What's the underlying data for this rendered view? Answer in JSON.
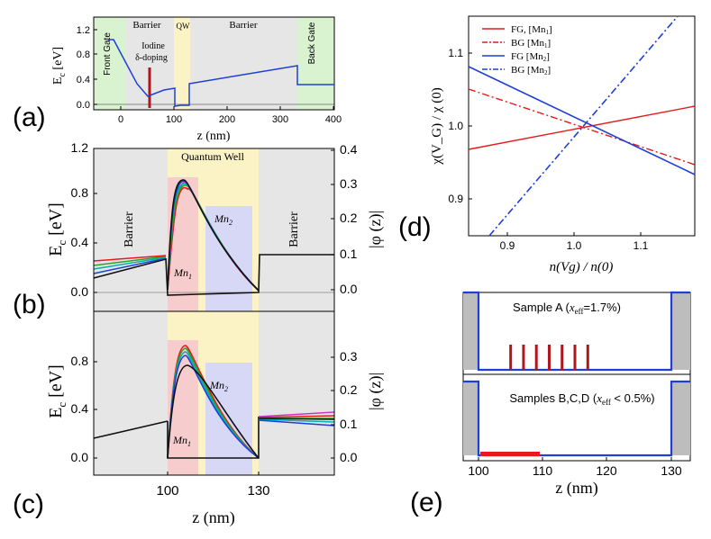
{
  "panel_labels": {
    "a": "(a)",
    "b": "(b)",
    "c": "(c)",
    "d": "(d)",
    "e": "(e)"
  },
  "panel_a": {
    "region_labels": {
      "front_gate": "Front Gate",
      "barrier_left": "Barrier",
      "qw": "QW",
      "barrier_right": "Barrier",
      "back_gate": "Back Gate"
    },
    "doping_label_line1": "Iodine",
    "doping_label_line2": "δ-doping",
    "ylabel_main": "E",
    "ylabel_sub": "c",
    "ylabel_unit": " [eV]",
    "xlabel": "z (nm)",
    "xticks": [
      "0",
      "100",
      "200",
      "300",
      "400"
    ],
    "yticks": [
      "0.0",
      "0.4",
      "0.8",
      "1.2"
    ]
  },
  "panel_b": {
    "title": "Quantum Well",
    "barrier_left": "Barrier",
    "barrier_right": "Barrier",
    "mn1_main": "Mn",
    "mn1_sub": "1",
    "mn2_main": "Mn",
    "mn2_sub": "2",
    "ylabel_left_main": "E",
    "ylabel_left_sub": "c",
    "ylabel_left_unit": " [eV]",
    "ylabel_right": "|φ (z)|",
    "yticks_left": [
      "0.0",
      "0.4",
      "0.8",
      "1.2"
    ],
    "yticks_right": [
      "0.0",
      "0.1",
      "0.2",
      "0.3",
      "0.4"
    ]
  },
  "panel_c": {
    "mn1_main": "Mn",
    "mn1_sub": "1",
    "mn2_main": "Mn",
    "mn2_sub": "2",
    "ylabel_left_main": "E",
    "ylabel_left_sub": "c",
    "ylabel_left_unit": " [eV]",
    "ylabel_right": "|φ (z)|",
    "yticks_left": [
      "0.0",
      "0.4",
      "0.8"
    ],
    "yticks_right": [
      "0.0",
      "0.1",
      "0.2",
      "0.3"
    ],
    "xticks": [
      "100",
      "130"
    ],
    "xlabel": "z (nm)"
  },
  "panel_d": {
    "ylabel": "χ(V_G) / χ (0)",
    "xlabel": "n(Vg) / n(0)",
    "xticks": [
      "0.9",
      "1.0",
      "1.1"
    ],
    "yticks": [
      "0.9",
      "1.0",
      "1.1"
    ],
    "legend": [
      {
        "label": "FG, [Mn",
        "sub": "1",
        "end": "]",
        "color": "#e41a1c",
        "dash": "solid"
      },
      {
        "label": "BG [Mn",
        "sub": "1",
        "end": "]",
        "color": "#e41a1c",
        "dash": "dashdot"
      },
      {
        "label": "FG  [Mn",
        "sub": "2",
        "end": "]",
        "color": "#1f3fd6",
        "dash": "solid"
      },
      {
        "label": "BG [Mn",
        "sub": "2",
        "end": "]",
        "color": "#1f3fd6",
        "dash": "dashdot"
      }
    ]
  },
  "panel_e": {
    "sample_a_prefix": "Sample A (",
    "sample_a_var": "x",
    "sample_a_sub": "eff",
    "sample_a_value": "=1.7%)",
    "sample_bcd_prefix": "Samples B,C,D (",
    "sample_bcd_var": "x",
    "sample_bcd_sub": "eff",
    "sample_bcd_value": " < 0.5%)",
    "xticks": [
      "100",
      "110",
      "120",
      "130"
    ],
    "xlabel": "z (nm)"
  },
  "chart_data": [
    {
      "id": "a",
      "type": "line",
      "title": "",
      "xlabel": "z (nm)",
      "ylabel": "Ec [eV]",
      "xlim": [
        -25,
        400
      ],
      "ylim": [
        -0.07,
        1.3
      ],
      "regions": [
        {
          "name": "Front Gate",
          "x": [
            -25,
            10
          ],
          "color": "#d9f2d0"
        },
        {
          "name": "Barrier",
          "x": [
            10,
            100
          ],
          "color": "#e6e6e6"
        },
        {
          "name": "QW",
          "x": [
            100,
            130
          ],
          "color": "#fbf3c5"
        },
        {
          "name": "Barrier",
          "x": [
            130,
            330
          ],
          "color": "#e6e6e6"
        },
        {
          "name": "Back Gate",
          "x": [
            330,
            400
          ],
          "color": "#d9f2d0"
        }
      ],
      "series": [
        {
          "name": "Ec",
          "color": "#1f3fd6",
          "x": [
            -12,
            2,
            55,
            88,
            100,
            100,
            113,
            130,
            130,
            330,
            330,
            400
          ],
          "y": [
            1.05,
            1.05,
            0.1,
            0.25,
            0.27,
            -0.05,
            -0.04,
            -0.02,
            0.3,
            0.6,
            0.3,
            0.3
          ]
        }
      ],
      "markers": [
        {
          "name": "Iodine δ-doping",
          "x": 55,
          "y": [
            0,
            0.4
          ],
          "color": "#b0161e"
        }
      ]
    },
    {
      "id": "b",
      "type": "line",
      "xlabel": "",
      "ylabel": "Ec [eV]",
      "ylabel_right": "|φ (z)|",
      "xlim": [
        75,
        155
      ],
      "ylim": [
        -0.1,
        1.2
      ],
      "ylim_right": [
        -0.033,
        0.4
      ],
      "regions": [
        {
          "name": "Quantum Well",
          "x": [
            100,
            130
          ],
          "color": "#fbf3c5"
        },
        {
          "name": "Mn1",
          "x": [
            100,
            110
          ],
          "color": "#f6cccc"
        },
        {
          "name": "Mn2",
          "x": [
            112,
            128
          ],
          "color": "#d7d7f6"
        }
      ],
      "series": [
        {
          "name": "Ec curve 1",
          "color": "#111111",
          "x": [
            75,
            100,
            100,
            130,
            130,
            155
          ],
          "y": [
            0.11,
            0.26,
            -0.04,
            -0.01,
            0.3,
            0.3
          ]
        },
        {
          "name": "Ec curve 2",
          "color": "#1f3fd6",
          "x": [
            75,
            100
          ],
          "y": [
            0.14,
            0.27
          ]
        },
        {
          "name": "Ec curve 3",
          "color": "#00b0b0",
          "x": [
            75,
            100
          ],
          "y": [
            0.17,
            0.27
          ]
        },
        {
          "name": "Ec curve 4",
          "color": "#29a329",
          "x": [
            75,
            100
          ],
          "y": [
            0.19,
            0.28
          ]
        },
        {
          "name": "Ec curve 5",
          "color": "#e41a1c",
          "x": [
            75,
            100
          ],
          "y": [
            0.22,
            0.28
          ]
        },
        {
          "name": "|φ| curve 1",
          "color": "#111111",
          "x": [
            100,
            105,
            130
          ],
          "y": [
            0,
            0.31,
            0
          ]
        },
        {
          "name": "|φ| curve 2",
          "color": "#1f3fd6",
          "x": [
            100,
            105.5,
            130
          ],
          "y": [
            0,
            0.3,
            0
          ]
        },
        {
          "name": "|φ| curve 3",
          "color": "#00b0b0",
          "x": [
            100,
            106,
            130
          ],
          "y": [
            0,
            0.29,
            0
          ]
        },
        {
          "name": "|φ| curve 4",
          "color": "#29a329",
          "x": [
            100,
            107,
            130
          ],
          "y": [
            0,
            0.28,
            0
          ]
        },
        {
          "name": "|φ| curve 5",
          "color": "#e41a1c",
          "x": [
            100,
            107.5,
            130
          ],
          "y": [
            0,
            0.27,
            0
          ]
        },
        {
          "name": "|φ| curve 6",
          "color": "#cc33cc",
          "x": [
            100,
            108,
            130
          ],
          "y": [
            0,
            0.26,
            0
          ]
        }
      ]
    },
    {
      "id": "c",
      "type": "line",
      "xlabel": "z (nm)",
      "ylabel": "Ec [eV]",
      "ylabel_right": "|φ (z)|",
      "xlim": [
        75,
        155
      ],
      "ylim": [
        -0.06,
        1.1
      ],
      "ylim_right": [
        -0.02,
        0.367
      ],
      "regions": [
        {
          "name": "Quantum Well",
          "x": [
            100,
            130
          ],
          "color": "#fbf3c5"
        },
        {
          "name": "Mn1",
          "x": [
            100,
            110
          ],
          "color": "#f6cccc"
        },
        {
          "name": "Mn2",
          "x": [
            112,
            128
          ],
          "color": "#d7d7f6"
        }
      ],
      "series": [
        {
          "name": "Ec black",
          "color": "#111111",
          "x": [
            75,
            100,
            100,
            130,
            130,
            155
          ],
          "y": [
            0.17,
            0.29,
            0,
            0,
            0.3,
            0.29
          ]
        },
        {
          "name": "Ec right a",
          "color": "#cc33cc",
          "x": [
            131,
            155
          ],
          "y": [
            0.31,
            0.36
          ]
        },
        {
          "name": "Ec right b",
          "color": "#e41a1c",
          "x": [
            131,
            155
          ],
          "y": [
            0.3,
            0.34
          ]
        },
        {
          "name": "Ec right c",
          "color": "#29a329",
          "x": [
            131,
            155
          ],
          "y": [
            0.3,
            0.32
          ]
        },
        {
          "name": "Ec right d",
          "color": "#00b0b0",
          "x": [
            131,
            155
          ],
          "y": [
            0.29,
            0.3
          ]
        },
        {
          "name": "Ec right e",
          "color": "#1f3fd6",
          "x": [
            131,
            155
          ],
          "y": [
            0.28,
            0.27
          ]
        },
        {
          "name": "|φ| curve 1",
          "color": "#e41a1c",
          "x": [
            100,
            106,
            130
          ],
          "y": [
            0,
            0.32,
            0
          ]
        },
        {
          "name": "|φ| curve 2",
          "color": "#29a329",
          "x": [
            100,
            106,
            130
          ],
          "y": [
            0,
            0.31,
            0
          ]
        },
        {
          "name": "|φ| curve 3",
          "color": "#00b0b0",
          "x": [
            100,
            106,
            130
          ],
          "y": [
            0,
            0.3,
            0
          ]
        },
        {
          "name": "|φ| curve 4",
          "color": "#1f3fd6",
          "x": [
            100,
            106,
            130
          ],
          "y": [
            0,
            0.29,
            0
          ]
        },
        {
          "name": "|φ| black",
          "color": "#111111",
          "x": [
            100,
            106.5,
            130
          ],
          "y": [
            0,
            0.26,
            0
          ]
        }
      ]
    },
    {
      "id": "d",
      "type": "line",
      "xlabel": "n(Vg) / n(0)",
      "ylabel": "χ(VG) / χ (0)",
      "xlim": [
        0.85,
        1.15
      ],
      "ylim": [
        0.85,
        1.15
      ],
      "series": [
        {
          "name": "FG, [Mn1]",
          "color": "#e41a1c",
          "dash": "solid",
          "x": [
            0.85,
            1.0,
            1.15
          ],
          "y": [
            0.967,
            1.0,
            1.026
          ]
        },
        {
          "name": "BG [Mn1]",
          "color": "#e41a1c",
          "dash": "dashdot",
          "x": [
            0.85,
            1.0,
            1.15
          ],
          "y": [
            1.048,
            1.0,
            0.946
          ]
        },
        {
          "name": "FG  [Mn2]",
          "color": "#1f3fd6",
          "dash": "solid",
          "x": [
            0.85,
            1.0,
            1.15
          ],
          "y": [
            1.08,
            1.0,
            0.933
          ]
        },
        {
          "name": "BG [Mn2]",
          "color": "#1f3fd6",
          "dash": "dashdot",
          "x": [
            0.88,
            1.0,
            1.13
          ],
          "y": [
            0.85,
            1.0,
            1.15
          ]
        }
      ]
    },
    {
      "id": "e",
      "type": "line",
      "xlabel": "z (nm)",
      "xlim": [
        97,
        133
      ],
      "series": [
        {
          "name": "Sample A profile",
          "color": "#1f3fd6",
          "x": [
            97.5,
            100,
            100,
            130,
            130,
            133
          ],
          "y": [
            1,
            1,
            0,
            0,
            1,
            1
          ]
        },
        {
          "name": "Samples B,C,D profile",
          "color": "#1f3fd6",
          "x": [
            97.5,
            100,
            100,
            130,
            130,
            133
          ],
          "y": [
            1,
            1,
            0,
            0,
            1,
            1
          ]
        }
      ],
      "mn_layers_sample_a": [
        105,
        107,
        109,
        111,
        113,
        115,
        117
      ],
      "mn_layer_samples_bcd": [
        100,
        110
      ]
    }
  ]
}
